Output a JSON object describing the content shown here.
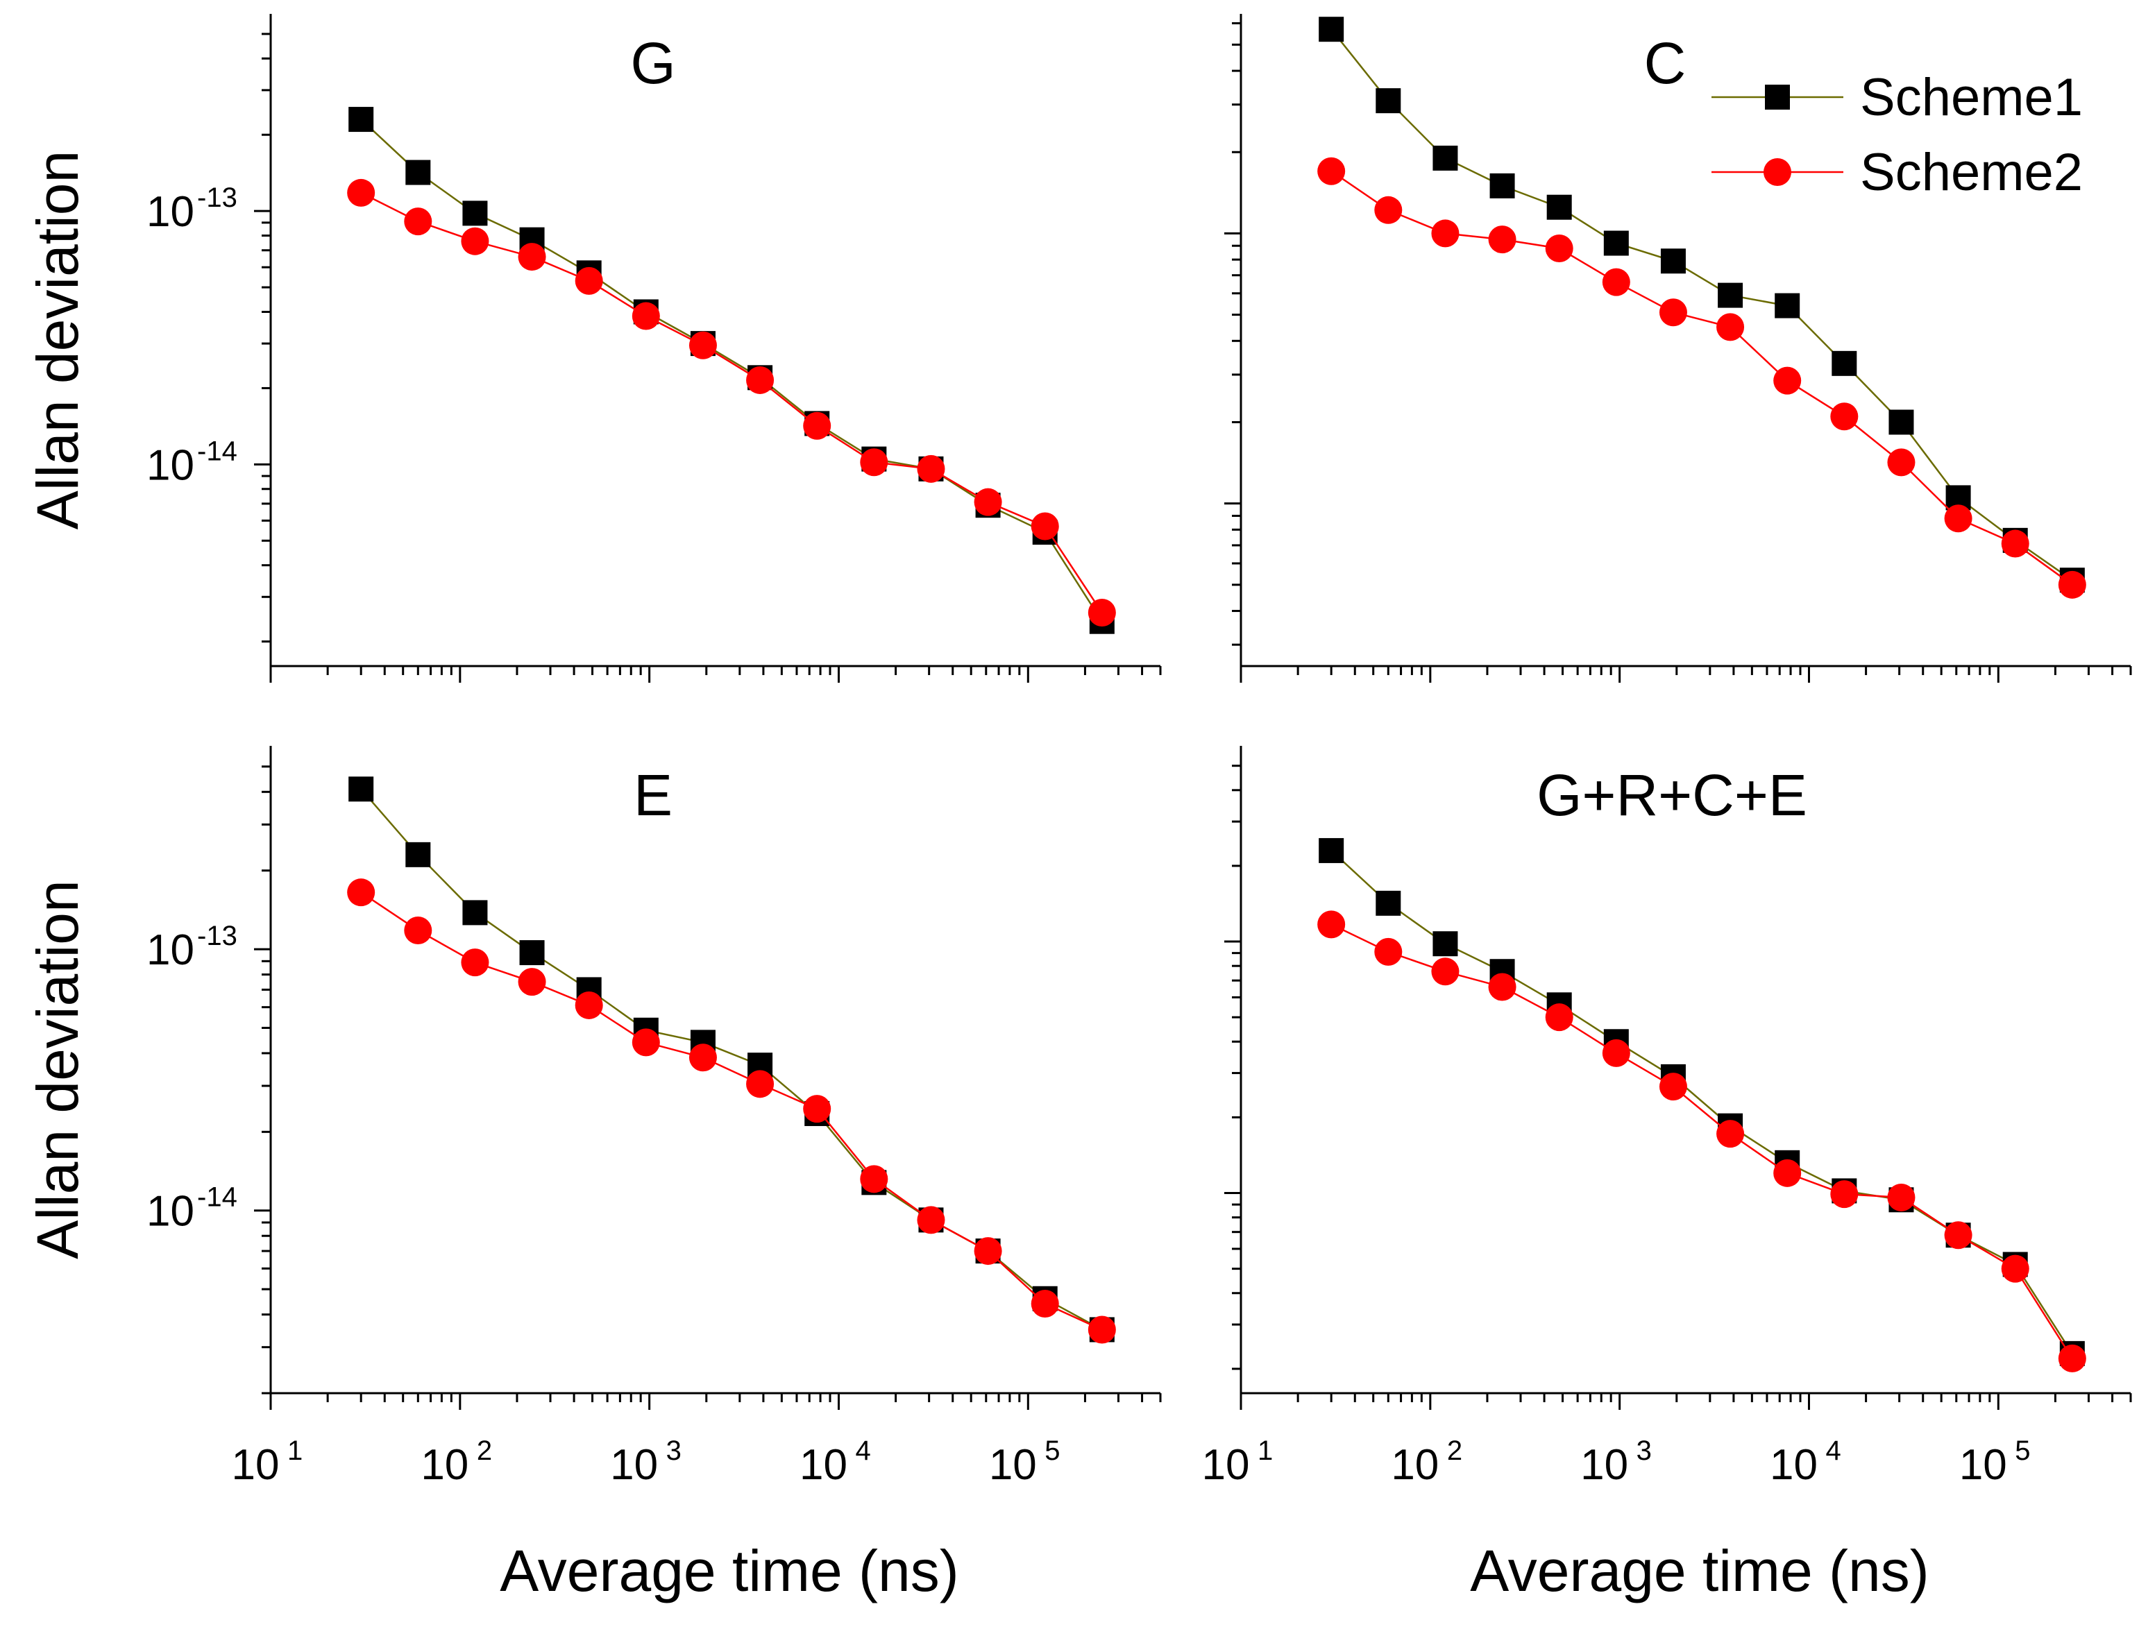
{
  "figure": {
    "legend": {
      "entries": [
        {
          "label": "Scheme1",
          "series": 0
        },
        {
          "label": "Scheme2",
          "series": 1
        }
      ],
      "placement": "top-right of panel C"
    },
    "colors": {
      "scheme1_line": "#6b6b00",
      "scheme1_marker": "#000000",
      "scheme2_line": "#ff0000",
      "scheme2_marker": "#ff0000"
    },
    "marker_names": [
      "square",
      "circle"
    ]
  },
  "chart_data": [
    {
      "type": "line",
      "title": "G",
      "xlabel": "Average time (ns)",
      "ylabel": "Allan deviation",
      "xscale": "log",
      "yscale": "log",
      "xlim": [
        10,
        500000
      ],
      "ylim": [
        1.6e-15,
        6e-13
      ],
      "x_ticks": [
        {
          "base": "10",
          "exp": "1",
          "value": 10
        },
        {
          "base": "10",
          "exp": "2",
          "value": 100
        },
        {
          "base": "10",
          "exp": "3",
          "value": 1000
        },
        {
          "base": "10",
          "exp": "4",
          "value": 10000
        },
        {
          "base": "10",
          "exp": "5",
          "value": 100000
        }
      ],
      "y_ticks": [
        {
          "base": "10",
          "exp": "-13",
          "value": 1e-13
        },
        {
          "base": "10",
          "exp": "-14",
          "value": 1e-14
        }
      ],
      "x": [
        30,
        60,
        120,
        240,
        480,
        960,
        1920,
        3840,
        7680,
        15360,
        30720,
        61440,
        122880,
        245760
      ],
      "series": [
        {
          "name": "Scheme1",
          "marker": "square",
          "values": [
            2.3e-13,
            1.42e-13,
            9.8e-14,
            7.7e-14,
            5.7e-14,
            4e-14,
            3e-14,
            2.2e-14,
            1.45e-14,
            1.05e-14,
            9.6e-15,
            6.9e-15,
            5.4e-15,
            2.4e-15
          ]
        },
        {
          "name": "Scheme2",
          "marker": "circle",
          "values": [
            1.18e-13,
            9.1e-14,
            7.6e-14,
            6.6e-14,
            5.3e-14,
            3.85e-14,
            2.95e-14,
            2.15e-14,
            1.42e-14,
            1.02e-14,
            9.6e-15,
            7.1e-15,
            5.7e-15,
            2.6e-15
          ]
        }
      ]
    },
    {
      "type": "line",
      "title": "C",
      "xlabel": "Average time (ns)",
      "ylabel": "Allan deviation",
      "xscale": "log",
      "yscale": "log",
      "xlim": [
        10,
        500000
      ],
      "ylim": [
        2.5e-15,
        6.5e-13
      ],
      "x_ticks": [
        {
          "base": "10",
          "exp": "1",
          "value": 10
        },
        {
          "base": "10",
          "exp": "2",
          "value": 100
        },
        {
          "base": "10",
          "exp": "3",
          "value": 1000
        },
        {
          "base": "10",
          "exp": "4",
          "value": 10000
        },
        {
          "base": "10",
          "exp": "5",
          "value": 100000
        }
      ],
      "y_ticks": [
        {
          "base": "10",
          "exp": "-13",
          "value": 1e-13
        },
        {
          "base": "10",
          "exp": "-14",
          "value": 1e-14
        }
      ],
      "x": [
        30,
        60,
        120,
        240,
        480,
        960,
        1920,
        3840,
        7680,
        15360,
        30720,
        61440,
        122880,
        245760
      ],
      "series": [
        {
          "name": "Scheme1",
          "marker": "square",
          "values": [
            5.7e-13,
            3.1e-13,
            1.9e-13,
            1.5e-13,
            1.25e-13,
            9.2e-14,
            7.9e-14,
            5.9e-14,
            5.4e-14,
            3.3e-14,
            2e-14,
            1.05e-14,
            7.3e-15,
            5.2e-15
          ]
        },
        {
          "name": "Scheme2",
          "marker": "circle",
          "values": [
            1.7e-13,
            1.22e-13,
            1e-13,
            9.5e-14,
            8.8e-14,
            6.6e-14,
            5.1e-14,
            4.5e-14,
            2.85e-14,
            2.1e-14,
            1.42e-14,
            8.8e-15,
            7.1e-15,
            5e-15
          ]
        }
      ]
    },
    {
      "type": "line",
      "title": "E",
      "xlabel": "Average time (ns)",
      "ylabel": "Allan deviation",
      "xscale": "log",
      "yscale": "log",
      "xlim": [
        10,
        500000
      ],
      "ylim": [
        2e-15,
        6e-13
      ],
      "x_ticks": [
        {
          "base": "10",
          "exp": "1",
          "value": 10
        },
        {
          "base": "10",
          "exp": "2",
          "value": 100
        },
        {
          "base": "10",
          "exp": "3",
          "value": 1000
        },
        {
          "base": "10",
          "exp": "4",
          "value": 10000
        },
        {
          "base": "10",
          "exp": "5",
          "value": 100000
        }
      ],
      "y_ticks": [
        {
          "base": "10",
          "exp": "-13",
          "value": 1e-13
        },
        {
          "base": "10",
          "exp": "-14",
          "value": 1e-14
        }
      ],
      "x": [
        30,
        60,
        120,
        240,
        480,
        960,
        1920,
        3840,
        7680,
        15360,
        30720,
        61440,
        122880,
        245760
      ],
      "series": [
        {
          "name": "Scheme1",
          "marker": "square",
          "values": [
            4.1e-13,
            2.3e-13,
            1.38e-13,
            9.7e-14,
            7e-14,
            4.9e-14,
            4.4e-14,
            3.6e-14,
            2.35e-14,
            1.28e-14,
            9.2e-15,
            7e-15,
            4.6e-15,
            3.5e-15
          ]
        },
        {
          "name": "Scheme2",
          "marker": "circle",
          "values": [
            1.65e-13,
            1.18e-13,
            8.9e-14,
            7.5e-14,
            6.1e-14,
            4.4e-14,
            3.85e-14,
            3.05e-14,
            2.45e-14,
            1.32e-14,
            9.2e-15,
            7e-15,
            4.4e-15,
            3.5e-15
          ]
        }
      ]
    },
    {
      "type": "line",
      "title": "G+R+C+E",
      "xlabel": "Average time (ns)",
      "ylabel": "Allan deviation",
      "xscale": "log",
      "yscale": "log",
      "xlim": [
        10,
        500000
      ],
      "ylim": [
        1.6e-15,
        6e-13
      ],
      "x_ticks": [
        {
          "base": "10",
          "exp": "1",
          "value": 10
        },
        {
          "base": "10",
          "exp": "2",
          "value": 100
        },
        {
          "base": "10",
          "exp": "3",
          "value": 1000
        },
        {
          "base": "10",
          "exp": "4",
          "value": 10000
        },
        {
          "base": "10",
          "exp": "5",
          "value": 100000
        }
      ],
      "y_ticks": [
        {
          "base": "10",
          "exp": "-13",
          "value": 1e-13
        },
        {
          "base": "10",
          "exp": "-14",
          "value": 1e-14
        }
      ],
      "x": [
        30,
        60,
        120,
        240,
        480,
        960,
        1920,
        3840,
        7680,
        15360,
        30720,
        61440,
        122880,
        245760
      ],
      "series": [
        {
          "name": "Scheme1",
          "marker": "square",
          "values": [
            2.3e-13,
            1.42e-13,
            9.8e-14,
            7.6e-14,
            5.6e-14,
            4e-14,
            2.9e-14,
            1.85e-14,
            1.32e-14,
            1.02e-14,
            9.4e-15,
            6.8e-15,
            5.2e-15,
            2.3e-15
          ]
        },
        {
          "name": "Scheme2",
          "marker": "circle",
          "values": [
            1.17e-13,
            9.1e-14,
            7.6e-14,
            6.6e-14,
            5e-14,
            3.6e-14,
            2.65e-14,
            1.72e-14,
            1.2e-14,
            9.9e-15,
            9.6e-15,
            6.8e-15,
            5e-15,
            2.2e-15
          ]
        }
      ]
    }
  ]
}
